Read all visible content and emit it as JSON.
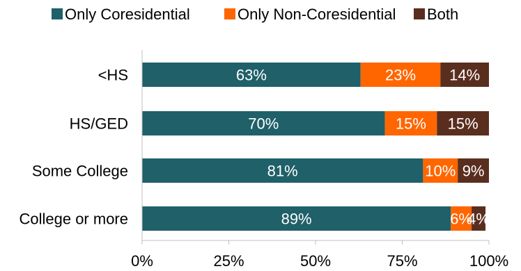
{
  "chart_data": {
    "type": "bar",
    "orientation": "horizontal",
    "stacked": true,
    "categories": [
      "<HS",
      "HS/GED",
      "Some College",
      "College or more"
    ],
    "series": [
      {
        "name": "Only Coresidential",
        "values": [
          63,
          70,
          81,
          89
        ],
        "labels": [
          "63%",
          "70%",
          "81%",
          "89%"
        ],
        "color": "#1F6069"
      },
      {
        "name": "Only Non-Coresidential",
        "values": [
          23,
          15,
          10,
          6
        ],
        "labels": [
          "23%",
          "15%",
          "10%",
          "6%"
        ],
        "color": "#FF6600"
      },
      {
        "name": "Both",
        "values": [
          14,
          15,
          9,
          4
        ],
        "labels": [
          "14%",
          "15%",
          "9%",
          "4%"
        ],
        "color": "#5A2E1E"
      }
    ],
    "xlim": [
      0,
      100
    ],
    "xticks": [
      0,
      25,
      50,
      75,
      100
    ],
    "xtick_labels": [
      "0%",
      "25%",
      "50%",
      "75%",
      "100%"
    ],
    "legend_position": "top",
    "grid": false
  }
}
